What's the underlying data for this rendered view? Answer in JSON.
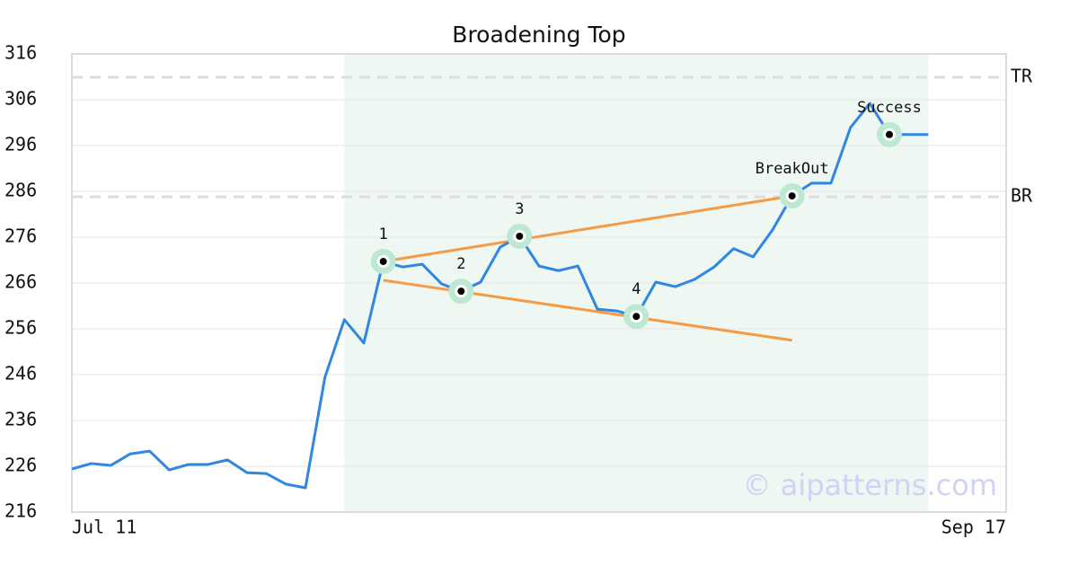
{
  "chart_data": {
    "type": "line",
    "title": "Broadening Top",
    "categories": [
      "Jul 11",
      null,
      null,
      null,
      null,
      null,
      null,
      null,
      null,
      null,
      null,
      null,
      null,
      null,
      null,
      null,
      null,
      null,
      null,
      null,
      null,
      null,
      null,
      null,
      null,
      null,
      null,
      null,
      null,
      null,
      null,
      null,
      null,
      null,
      null,
      null,
      null,
      null,
      null,
      null,
      null,
      null,
      null,
      null,
      null,
      null,
      null,
      null,
      "Sep 17"
    ],
    "values": [
      225.4,
      226.6,
      226.2,
      228.7,
      229.3,
      225.2,
      226.4,
      226.4,
      227.4,
      224.6,
      224.4,
      222.1,
      221.3,
      245.4,
      258.0,
      252.9,
      270.7,
      269.5,
      270.1,
      265.8,
      264.2,
      266.2,
      273.8,
      276.2,
      269.7,
      268.7,
      269.7,
      260.3,
      259.9,
      258.7,
      266.2,
      265.2,
      266.8,
      269.5,
      273.5,
      271.7,
      277.6,
      285.0,
      287.8,
      287.8,
      299.9,
      305.2,
      298.4,
      298.4,
      298.4,
      null,
      null,
      null,
      null
    ],
    "color": "#2f87e0",
    "ylim": [
      216,
      316
    ],
    "yticks": [
      216,
      226,
      236,
      246,
      256,
      266,
      276,
      286,
      296,
      306,
      316
    ],
    "grid": true,
    "highlight": [
      14,
      44
    ],
    "highlight_color": "#eef7f2",
    "points": [
      {
        "label": "1",
        "index": 16
      },
      {
        "label": "2",
        "index": 20
      },
      {
        "label": "3",
        "index": 23
      },
      {
        "label": "4",
        "index": 29
      },
      {
        "label": "BreakOut",
        "index": 37
      },
      {
        "label": "Success",
        "index": 42
      }
    ],
    "trendlines": [
      {
        "from": [
          16,
          270.7
        ],
        "to": [
          37,
          285.0
        ]
      },
      {
        "from": [
          16,
          266.6
        ],
        "to": [
          37,
          253.5
        ]
      }
    ],
    "trend_color": "#f59a45",
    "levels": [
      {
        "label": "TR",
        "value": 310.9
      },
      {
        "label": "BR",
        "value": 284.8
      }
    ],
    "watermark": "© aipatterns.com"
  }
}
